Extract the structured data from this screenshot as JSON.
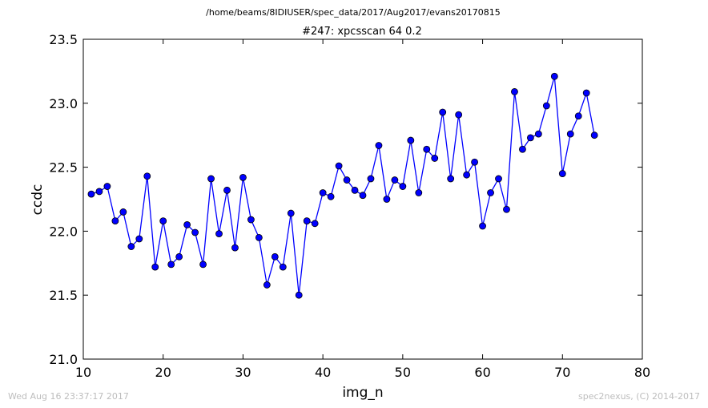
{
  "header": {
    "path": "/home/beams/8IDIUSER/spec_data/2017/Aug2017/evans20170815"
  },
  "footer": {
    "timestamp": "Wed Aug 16 23:37:17 2017",
    "credit": "spec2nexus, (C) 2014-2017"
  },
  "colors": {
    "series": "#0000ff",
    "marker_edge": "#000000"
  },
  "chart_data": {
    "type": "line",
    "title": "#247: xpcsscan 64 0.2",
    "xlabel": "img_n",
    "ylabel": "ccdc",
    "xlim": [
      10,
      80
    ],
    "ylim": [
      21.0,
      23.5
    ],
    "x_ticks": [
      "10",
      "20",
      "30",
      "40",
      "50",
      "60",
      "70",
      "80"
    ],
    "y_ticks": [
      "21.0",
      "21.5",
      "22.0",
      "22.5",
      "23.0",
      "23.5"
    ],
    "grid": false,
    "marker": "circle",
    "x": [
      11,
      12,
      13,
      14,
      15,
      16,
      17,
      18,
      19,
      20,
      21,
      22,
      23,
      24,
      25,
      26,
      27,
      28,
      29,
      30,
      31,
      32,
      33,
      34,
      35,
      36,
      37,
      38,
      39,
      40,
      41,
      42,
      43,
      44,
      45,
      46,
      47,
      48,
      49,
      50,
      51,
      52,
      53,
      54,
      55,
      56,
      57,
      58,
      59,
      60,
      61,
      62,
      63,
      64,
      65,
      66,
      67,
      68,
      69,
      70,
      71,
      72,
      73,
      74
    ],
    "y": [
      22.29,
      22.31,
      22.35,
      22.08,
      22.15,
      21.88,
      21.94,
      22.43,
      21.72,
      22.08,
      21.74,
      21.8,
      22.05,
      21.99,
      21.74,
      22.41,
      21.98,
      22.32,
      21.87,
      22.42,
      22.09,
      21.95,
      21.58,
      21.8,
      21.72,
      22.14,
      21.5,
      22.08,
      22.06,
      22.3,
      22.27,
      22.51,
      22.4,
      22.32,
      22.28,
      22.41,
      22.67,
      22.25,
      22.4,
      22.35,
      22.71,
      22.3,
      22.64,
      22.57,
      22.93,
      22.41,
      22.91,
      22.44,
      22.54,
      22.04,
      22.3,
      22.41,
      22.17,
      23.09,
      22.64,
      22.73,
      22.76,
      22.98,
      23.21,
      22.45,
      22.76,
      22.9,
      23.08,
      22.75
    ]
  }
}
